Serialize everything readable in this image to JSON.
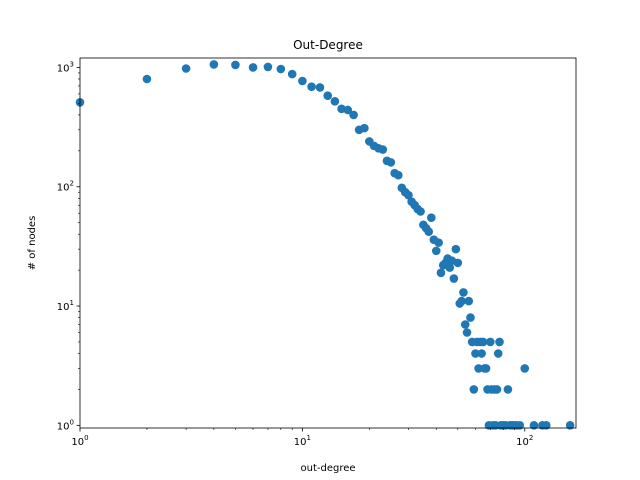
{
  "chart_data": {
    "type": "scatter",
    "title": "Out-Degree",
    "xlabel": "out-degree",
    "ylabel": "# of nodes",
    "xscale": "log",
    "yscale": "log",
    "xlim": [
      1,
      170
    ],
    "ylim": [
      0.95,
      1200
    ],
    "grid": false,
    "color": "#1f77b4",
    "x_ticks": [
      {
        "value": 1,
        "base": "10",
        "exp": "0"
      },
      {
        "value": 10,
        "base": "10",
        "exp": "1"
      },
      {
        "value": 100,
        "base": "10",
        "exp": "2"
      }
    ],
    "y_ticks": [
      {
        "value": 1,
        "base": "10",
        "exp": "0"
      },
      {
        "value": 10,
        "base": "10",
        "exp": "1"
      },
      {
        "value": 100,
        "base": "10",
        "exp": "2"
      },
      {
        "value": 1000,
        "base": "10",
        "exp": "3"
      }
    ],
    "points": [
      [
        1,
        510
      ],
      [
        2,
        800
      ],
      [
        3,
        980
      ],
      [
        4,
        1060
      ],
      [
        5,
        1050
      ],
      [
        6,
        1000
      ],
      [
        7,
        1010
      ],
      [
        8,
        970
      ],
      [
        9,
        880
      ],
      [
        10,
        770
      ],
      [
        11,
        690
      ],
      [
        12,
        680
      ],
      [
        13,
        580
      ],
      [
        14,
        520
      ],
      [
        15,
        450
      ],
      [
        16,
        440
      ],
      [
        17,
        400
      ],
      [
        18,
        300
      ],
      [
        19,
        310
      ],
      [
        20,
        240
      ],
      [
        21,
        220
      ],
      [
        22,
        210
      ],
      [
        23,
        205
      ],
      [
        24,
        165
      ],
      [
        25,
        160
      ],
      [
        26,
        130
      ],
      [
        27,
        125
      ],
      [
        28,
        98
      ],
      [
        29,
        90
      ],
      [
        30,
        85
      ],
      [
        31,
        75
      ],
      [
        32,
        70
      ],
      [
        33,
        65
      ],
      [
        34,
        62
      ],
      [
        35,
        48
      ],
      [
        36,
        45
      ],
      [
        37,
        42
      ],
      [
        38,
        55
      ],
      [
        39,
        36
      ],
      [
        40,
        29
      ],
      [
        41,
        34
      ],
      [
        42,
        19
      ],
      [
        43,
        22
      ],
      [
        44,
        23
      ],
      [
        45,
        25
      ],
      [
        46,
        21
      ],
      [
        47,
        24
      ],
      [
        48,
        17
      ],
      [
        49,
        30
      ],
      [
        50,
        23
      ],
      [
        51,
        10.5
      ],
      [
        52,
        11
      ],
      [
        53,
        13
      ],
      [
        54,
        7
      ],
      [
        55,
        6
      ],
      [
        56,
        11
      ],
      [
        57,
        8
      ],
      [
        58,
        5
      ],
      [
        59,
        2
      ],
      [
        60,
        4
      ],
      [
        61,
        5
      ],
      [
        62,
        3
      ],
      [
        63,
        5
      ],
      [
        64,
        4
      ],
      [
        65,
        5
      ],
      [
        66,
        3
      ],
      [
        67,
        3
      ],
      [
        68,
        2
      ],
      [
        69,
        1
      ],
      [
        70,
        5
      ],
      [
        71,
        2
      ],
      [
        72,
        1
      ],
      [
        73,
        2
      ],
      [
        74,
        1
      ],
      [
        75,
        2
      ],
      [
        76,
        4
      ],
      [
        77,
        5
      ],
      [
        78,
        1
      ],
      [
        80,
        1
      ],
      [
        82,
        1
      ],
      [
        84,
        2
      ],
      [
        86,
        1
      ],
      [
        88,
        1
      ],
      [
        90,
        1
      ],
      [
        92,
        1
      ],
      [
        95,
        1
      ],
      [
        100,
        3
      ],
      [
        110,
        1
      ],
      [
        120,
        1
      ],
      [
        125,
        1
      ],
      [
        160,
        1
      ]
    ]
  }
}
